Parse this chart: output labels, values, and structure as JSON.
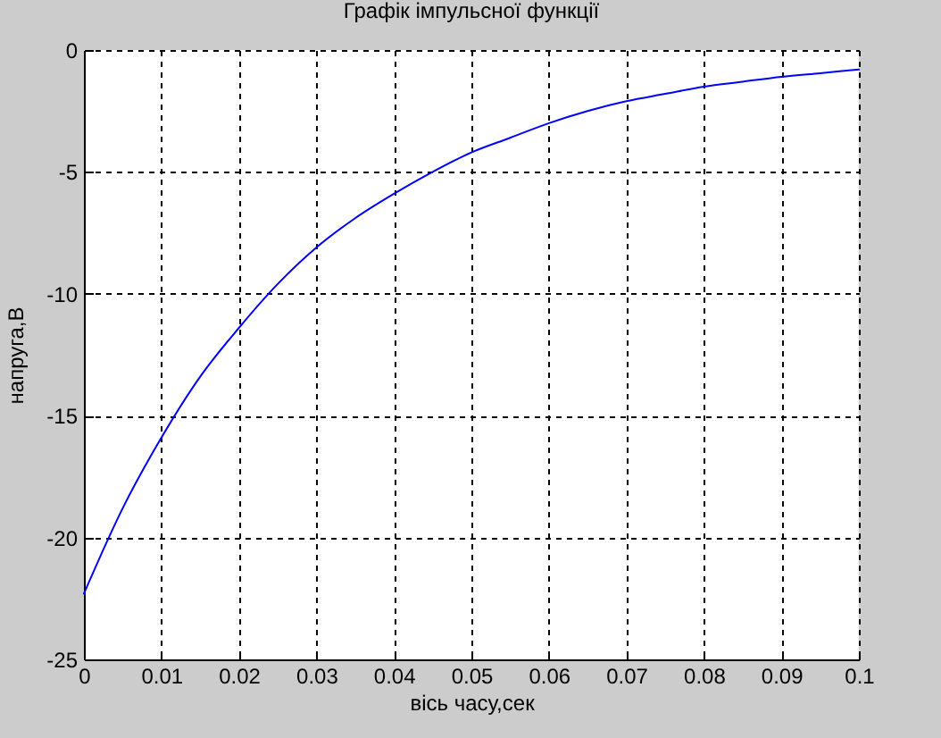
{
  "chart_data": {
    "type": "line",
    "title": "Графік імпульсної функції",
    "xlabel": "вісь часу,сек",
    "ylabel": "напруга,В",
    "x": [
      0,
      0.005,
      0.01,
      0.015,
      0.02,
      0.025,
      0.03,
      0.035,
      0.04,
      0.045,
      0.05,
      0.055,
      0.06,
      0.065,
      0.07,
      0.075,
      0.08,
      0.085,
      0.09,
      0.095,
      0.1
    ],
    "series": [
      {
        "color": "#0000ff",
        "values": [
          -22.3,
          -18.8,
          -15.9,
          -13.4,
          -11.4,
          -9.6,
          -8.1,
          -6.9,
          -5.9,
          -5.0,
          -4.2,
          -3.6,
          -3.0,
          -2.5,
          -2.1,
          -1.8,
          -1.5,
          -1.3,
          -1.1,
          -0.95,
          -0.8
        ]
      }
    ],
    "xlim": [
      0,
      0.1
    ],
    "xticks": [
      0,
      0.01,
      0.02,
      0.03,
      0.04,
      0.05,
      0.06,
      0.07,
      0.08,
      0.09,
      0.1
    ],
    "ylim": [
      -25,
      0
    ],
    "yticks": [
      -25,
      -20,
      -15,
      -10,
      -5,
      0
    ],
    "grid": true
  }
}
